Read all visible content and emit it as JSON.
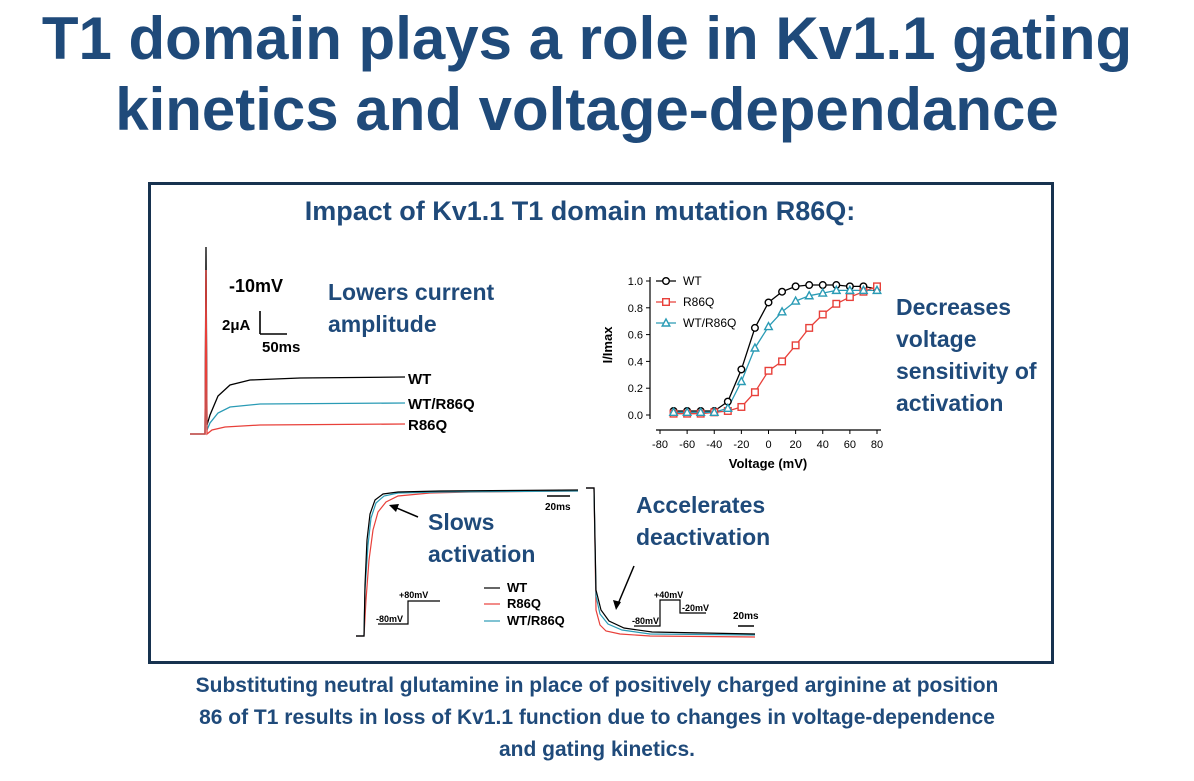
{
  "slide": {
    "title_line1": "T1 domain plays a role in Kv1.1 gating",
    "title_line2": "kinetics and voltage-dependance",
    "panel_heading": "Impact of Kv1.1 T1 domain mutation R86Q:",
    "summary_line1": "Substituting neutral glutamine in place of positively charged arginine at position",
    "summary_line2": "86 of T1 results in loss of Kv1.1 function due to changes in voltage-dependence",
    "summary_line3": "and gating kinetics."
  },
  "annotations": {
    "lowers_1": "Lowers current",
    "lowers_2": "amplitude",
    "decreases_1": "Decreases",
    "decreases_2": "voltage",
    "decreases_3": "sensitivity of",
    "decreases_4": "activation",
    "slows_1": "Slows",
    "slows_2": "activation",
    "accelerates_1": "Accelerates",
    "accelerates_2": "deactivation"
  },
  "colors": {
    "WT": "#000000",
    "R86Q": "#e8403a",
    "WT/R86Q": "#2a9bb5",
    "accent": "#1f4a7a"
  },
  "chart_data": [
    {
      "type": "line",
      "panel": "current-traces",
      "annotations": [
        "-10mV",
        "2μA",
        "50ms"
      ],
      "series": [
        {
          "name": "WT",
          "steady_current_rank": 1
        },
        {
          "name": "WT/R86Q",
          "steady_current_rank": 2
        },
        {
          "name": "R86Q",
          "steady_current_rank": 3
        }
      ]
    },
    {
      "type": "scatter",
      "panel": "conductance-voltage",
      "xlabel": "Voltage (mV)",
      "ylabel": "I/Imax",
      "xlim": [
        -80,
        80
      ],
      "ylim": [
        0.0,
        1.0
      ],
      "xticks": [
        "-80",
        "-60",
        "-40",
        "-20",
        "0",
        "20",
        "40",
        "60",
        "80"
      ],
      "yticks": [
        "0.0",
        "0.2",
        "0.4",
        "0.6",
        "0.8",
        "1.0"
      ],
      "legend_position": "top-left",
      "series": [
        {
          "name": "WT",
          "marker": "circle",
          "x": [
            -70,
            -60,
            -50,
            -40,
            -30,
            -20,
            -10,
            0,
            10,
            20,
            30,
            40,
            50,
            60,
            70,
            80
          ],
          "y": [
            0.03,
            0.03,
            0.03,
            0.03,
            0.1,
            0.34,
            0.65,
            0.84,
            0.92,
            0.96,
            0.97,
            0.97,
            0.97,
            0.96,
            0.96,
            0.94
          ]
        },
        {
          "name": "R86Q",
          "marker": "square",
          "x": [
            -70,
            -60,
            -50,
            -40,
            -30,
            -20,
            -10,
            0,
            10,
            20,
            30,
            40,
            50,
            60,
            70,
            80
          ],
          "y": [
            0.01,
            0.01,
            0.01,
            0.02,
            0.03,
            0.06,
            0.17,
            0.33,
            0.4,
            0.52,
            0.65,
            0.75,
            0.83,
            0.88,
            0.92,
            0.96
          ]
        },
        {
          "name": "WT/R86Q",
          "marker": "triangle",
          "x": [
            -70,
            -60,
            -50,
            -40,
            -30,
            -20,
            -10,
            0,
            10,
            20,
            30,
            40,
            50,
            60,
            70,
            80
          ],
          "y": [
            0.02,
            0.02,
            0.02,
            0.02,
            0.05,
            0.25,
            0.5,
            0.66,
            0.77,
            0.85,
            0.89,
            0.91,
            0.93,
            0.93,
            0.93,
            0.93
          ]
        }
      ]
    },
    {
      "type": "line",
      "panel": "activation-traces",
      "annotations": [
        "20ms",
        "+80mV",
        "-80mV"
      ],
      "legend": [
        "WT",
        "R86Q",
        "WT/R86Q"
      ]
    },
    {
      "type": "line",
      "panel": "deactivation-traces",
      "annotations": [
        "+40mV",
        "-20mV",
        "-80mV",
        "20ms"
      ]
    }
  ]
}
